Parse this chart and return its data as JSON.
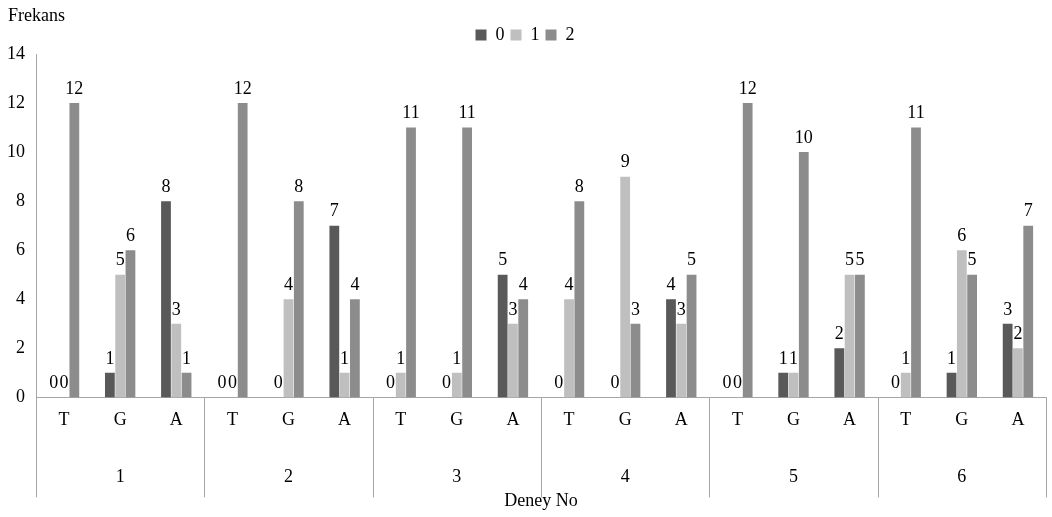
{
  "chart_data": {
    "type": "bar",
    "xlabel": "Deney No",
    "ylabel": "Frekans",
    "categories": [
      "T",
      "G",
      "A",
      "T",
      "G",
      "A",
      "T",
      "G",
      "A",
      "T",
      "G",
      "A",
      "T",
      "G",
      "A",
      "T",
      "G",
      "A"
    ],
    "annotations": [
      "1",
      "2",
      "3",
      "4",
      "5",
      "6"
    ],
    "series": [
      {
        "name": "0",
        "color": "#595959",
        "values": [
          0,
          1,
          8,
          0,
          0,
          7,
          0,
          0,
          5,
          0,
          0,
          4,
          0,
          1,
          2,
          0,
          1,
          3
        ]
      },
      {
        "name": "1",
        "color": "#bfbfbf",
        "values": [
          0,
          5,
          3,
          0,
          4,
          1,
          1,
          1,
          3,
          4,
          9,
          3,
          0,
          1,
          5,
          1,
          6,
          2
        ]
      },
      {
        "name": "2",
        "color": "#8c8c8c",
        "values": [
          12,
          6,
          1,
          12,
          8,
          4,
          11,
          11,
          4,
          8,
          3,
          5,
          12,
          10,
          5,
          11,
          5,
          7
        ]
      }
    ],
    "ylim": [
      0,
      14
    ],
    "yticks": [
      0,
      2,
      4,
      6,
      8,
      10,
      12,
      14
    ],
    "grid": false,
    "legend": "top",
    "data_labels": true
  }
}
